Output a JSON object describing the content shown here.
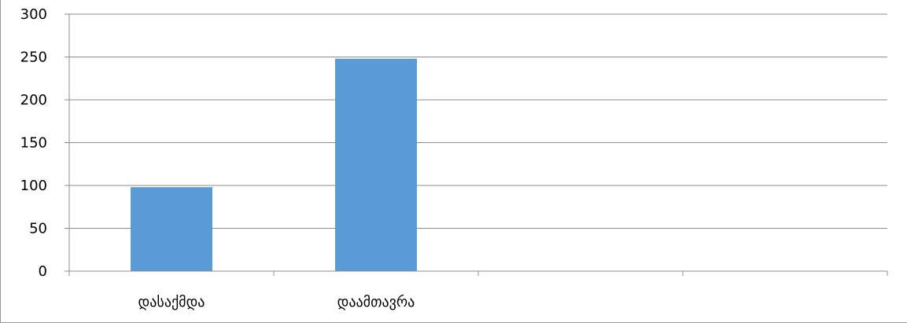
{
  "chart_data": {
    "type": "bar",
    "title": "",
    "xlabel": "",
    "ylabel": "",
    "categories": [
      "დასაქმდა",
      "დაამთავრა",
      "",
      ""
    ],
    "series": [
      {
        "values": [
          98,
          248,
          null,
          null
        ]
      }
    ],
    "ylim": [
      0,
      300
    ],
    "yticks": [
      0,
      50,
      100,
      150,
      200,
      250,
      300
    ],
    "yticklabels": [
      "0",
      "50",
      "100",
      "150",
      "200",
      "250",
      "300"
    ],
    "grid": true,
    "legend": "none",
    "colors": {
      "bar": "#5b9bd5",
      "grid": "#8c8c8c",
      "axis": "#8c8c8c"
    }
  }
}
